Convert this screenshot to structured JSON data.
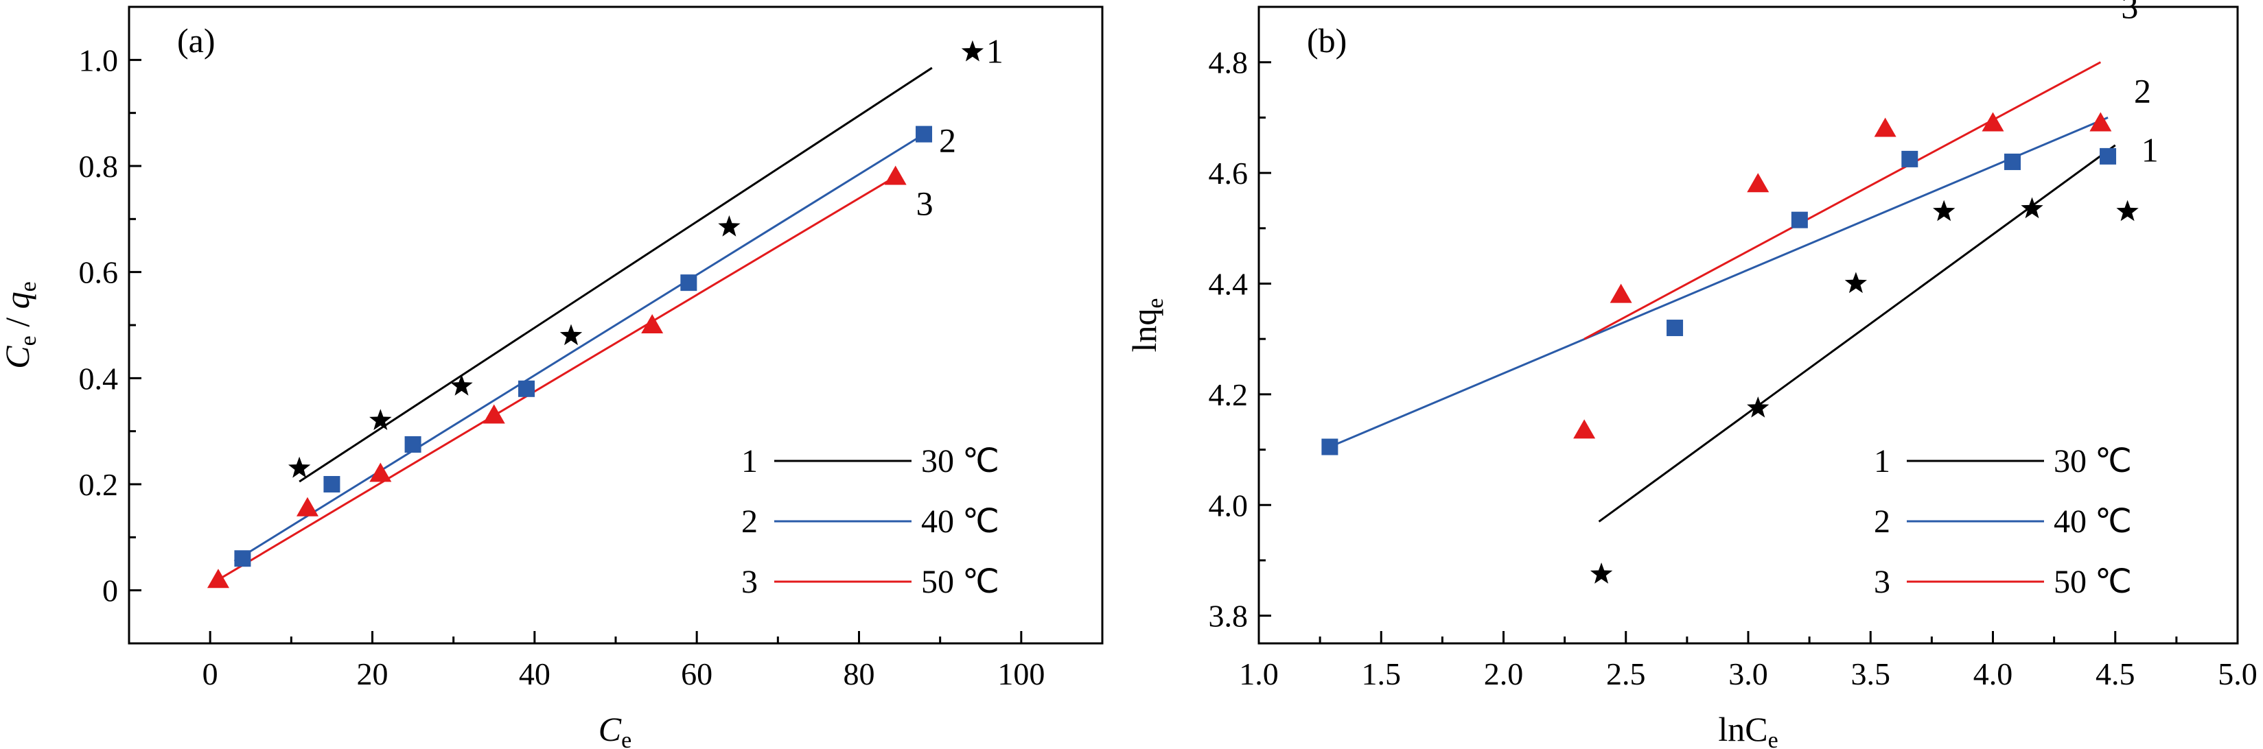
{
  "chart_data": [
    {
      "type": "scatter",
      "panel_label": "(a)",
      "xlabel": "C",
      "xlabel_sub": "e",
      "ylabel_c": "C",
      "ylabel_c_sub": "e",
      "ylabel_sep": " / ",
      "ylabel_q": "q",
      "ylabel_q_sub": "e",
      "xlim": [
        -10,
        110
      ],
      "ylim": [
        -0.1,
        1.1
      ],
      "xticks": [
        "0",
        "20",
        "40",
        "60",
        "80",
        "100"
      ],
      "yticks": [
        "0",
        "0.2",
        "0.4",
        "0.6",
        "0.8",
        "1.0"
      ],
      "series": [
        {
          "name": "30 ℃",
          "number": "1",
          "color": "#000000",
          "marker": "star",
          "x": [
            11,
            21,
            31,
            44.5,
            64,
            94
          ],
          "y": [
            0.23,
            0.32,
            0.385,
            0.48,
            0.685,
            1.015
          ],
          "fit": [
            [
              11,
              0.205
            ],
            [
              89,
              0.985
            ]
          ]
        },
        {
          "name": "40 ℃",
          "number": "2",
          "color": "#2a5ba8",
          "marker": "square",
          "x": [
            4,
            15,
            25,
            39,
            59,
            88
          ],
          "y": [
            0.06,
            0.2,
            0.275,
            0.38,
            0.58,
            0.86
          ],
          "fit": [
            [
              3,
              0.055
            ],
            [
              88,
              0.86
            ]
          ]
        },
        {
          "name": "50 ℃",
          "number": "3",
          "color": "#e31a1c",
          "marker": "triangle",
          "x": [
            1,
            12,
            21,
            35,
            54.5,
            84.5
          ],
          "y": [
            0.02,
            0.155,
            0.22,
            0.33,
            0.5,
            0.78
          ],
          "fit": [
            [
              1,
              0.02
            ],
            [
              84.5,
              0.78
            ]
          ]
        }
      ],
      "legend_position": "bottom-right"
    },
    {
      "type": "scatter",
      "panel_label": "(b)",
      "xlabel": "lnC",
      "xlabel_sub": "e",
      "ylabel_c": "lnq",
      "ylabel_c_sub": "e",
      "xlim": [
        1.0,
        5.0
      ],
      "ylim": [
        3.75,
        4.9
      ],
      "xticks": [
        "1.0",
        "1.5",
        "2.0",
        "2.5",
        "3.0",
        "3.5",
        "4.0",
        "4.5",
        "5.0"
      ],
      "yticks": [
        "3.8",
        "4.0",
        "4.2",
        "4.4",
        "4.6",
        "4.8"
      ],
      "series": [
        {
          "name": "30 ℃",
          "number": "1",
          "color": "#000000",
          "marker": "star",
          "x": [
            2.4,
            3.04,
            3.44,
            3.8,
            4.16,
            4.55
          ],
          "y": [
            3.875,
            4.175,
            4.4,
            4.53,
            4.535,
            4.53
          ],
          "fit": [
            [
              2.39,
              3.97
            ],
            [
              4.5,
              4.65
            ]
          ]
        },
        {
          "name": "40 ℃",
          "number": "2",
          "color": "#2a5ba8",
          "marker": "square",
          "x": [
            1.29,
            2.7,
            3.21,
            3.66,
            4.08,
            4.47
          ],
          "y": [
            4.105,
            4.32,
            4.515,
            4.625,
            4.62,
            4.63
          ],
          "fit": [
            [
              1.29,
              4.105
            ],
            [
              4.47,
              4.7
            ]
          ]
        },
        {
          "name": "50 ℃",
          "number": "3",
          "color": "#e31a1c",
          "marker": "triangle",
          "x": [
            2.33,
            2.48,
            3.04,
            3.56,
            4.0,
            4.44
          ],
          "y": [
            4.135,
            4.38,
            4.58,
            4.68,
            4.69,
            4.69
          ],
          "fit": [
            [
              2.33,
              4.3
            ],
            [
              4.44,
              4.8
            ]
          ]
        }
      ],
      "legend_position": "bottom-right"
    }
  ]
}
